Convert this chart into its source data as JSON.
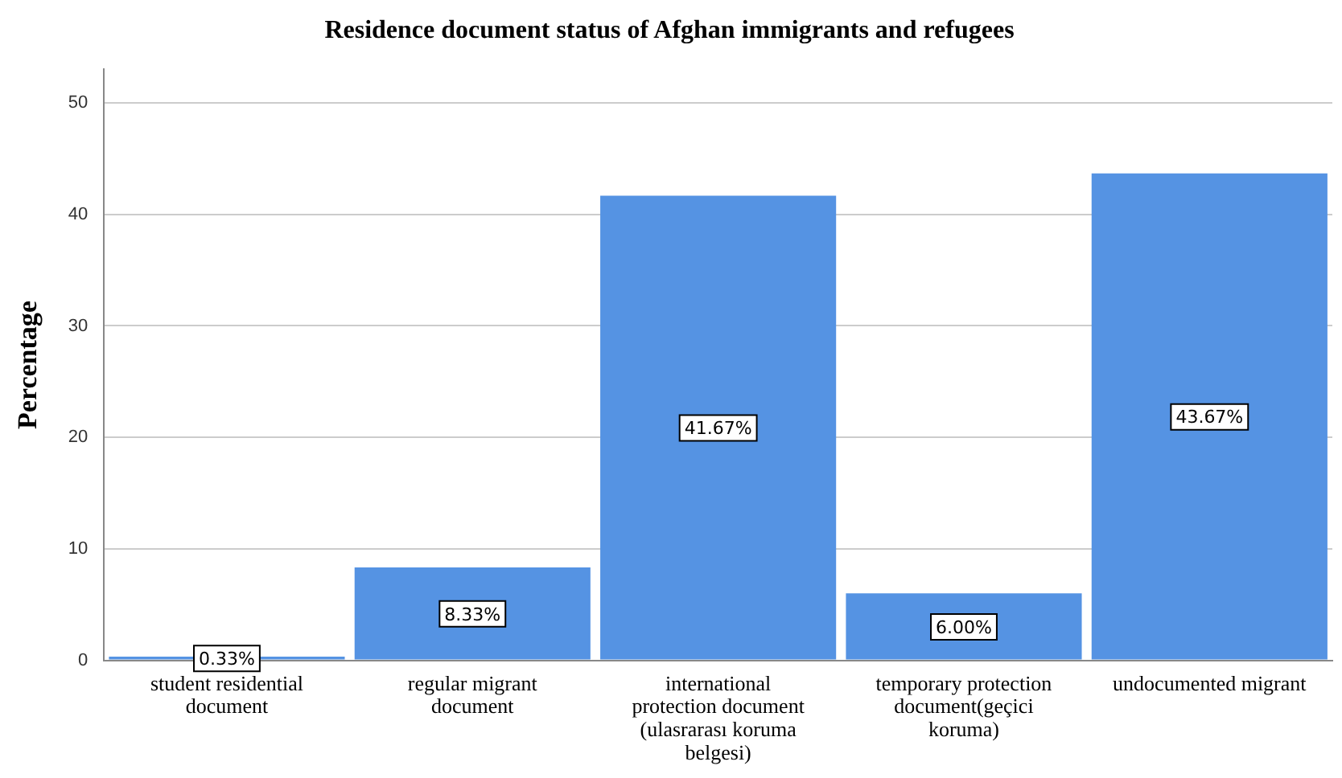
{
  "chart_data": {
    "type": "bar",
    "title": "Residence document status of Afghan immigrants and refugees",
    "ylabel": "Percentage",
    "categories": [
      "student residential document",
      "regular migrant document",
      "international protection document (ulasrarası koruma belgesi)",
      "temporary protection document(geçici koruma)",
      "undocumented migrant"
    ],
    "values": [
      0.33,
      8.33,
      41.67,
      6.0,
      43.67
    ],
    "value_labels": [
      "0.33%",
      "8.33%",
      "41.67%",
      "6.00%",
      "43.67%"
    ],
    "color": "#5593e3",
    "ylim": [
      0,
      53
    ],
    "yticks": [
      0,
      10,
      20,
      30,
      40,
      50
    ],
    "grid": "y",
    "legend": false
  }
}
